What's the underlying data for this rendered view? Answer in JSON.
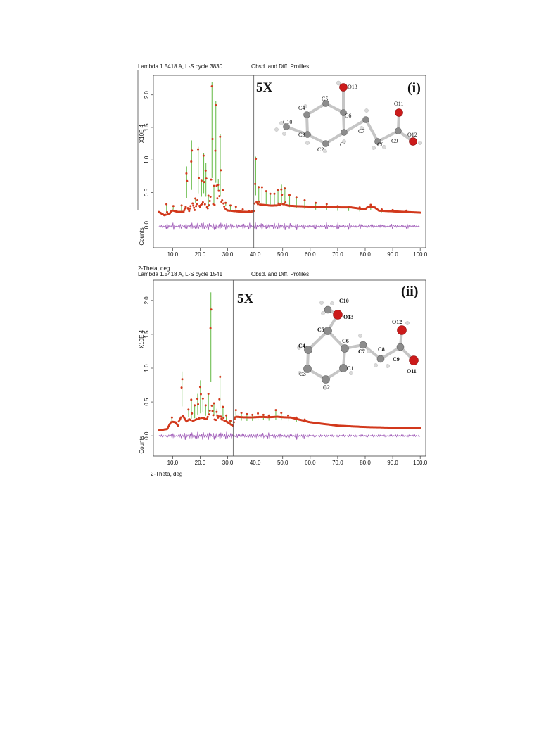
{
  "panels": [
    {
      "header_left": "Lambda 1.5418 A, L-S cycle 3830",
      "header_center": "Obsd. and Diff. Profiles",
      "panel_label": "(i)",
      "zoom_label": "5X",
      "ylabel_scale": "X10E 4",
      "ylabel": "Counts",
      "xlabel": "2-Theta, deg",
      "atom_labels": {
        "O13": "O13",
        "C5": "C5",
        "C4": "C4",
        "C6": "C6",
        "C10": "C10",
        "C3": "C3",
        "C2": "C2",
        "C1": "C1",
        "C7": "C7",
        "C8": "C8",
        "C9": "C9",
        "O11": "O11",
        "O12": "O12"
      }
    },
    {
      "header_left": "Lambda 1.5418 A, L-S cycle 1541",
      "header_center": "Obsd. and Diff. Profiles",
      "panel_label": "(ii)",
      "zoom_label": "5X",
      "ylabel_scale": "X10E 4",
      "ylabel": "Counts",
      "xlabel": "2-Theta, deg",
      "atom_labels": {
        "C10": "C10",
        "O13": "O13",
        "C5": "C5",
        "C4": "C4",
        "C6": "C6",
        "C7": "C7",
        "C8": "C8",
        "C9": "C9",
        "O12": "O12",
        "O11": "O11",
        "C1": "C1",
        "C2": "C2",
        "C3": "C3"
      }
    }
  ],
  "colors": {
    "observed": "#d2391c",
    "calculated": "#6fbf52",
    "difference": "#a05cb8",
    "oxygen": "#cc1b1b",
    "carbon": "#8a8a8a",
    "hydrogen": "#d8d8d8",
    "bond": "#c9c9c9"
  },
  "chart_data": [
    {
      "type": "line",
      "title": "",
      "xlabel": "2-Theta, deg",
      "ylabel": "Counts",
      "y_scale_label": "X10E 4",
      "xlim": [
        3,
        102
      ],
      "ylim": [
        -0.35,
        2.3
      ],
      "x_ticks": [
        "10.0",
        "20.0",
        "30.0",
        "40.0",
        "50.0",
        "60.0",
        "70.0",
        "80.0",
        "90.0",
        "100.0"
      ],
      "y_ticks": [
        "0.0",
        "0.5",
        "1.0",
        "1.5",
        "2.0"
      ],
      "magnification_start_2theta": 39.5,
      "magnification_factor": "5X",
      "series": [
        {
          "name": "Obsd.",
          "x": [
            5,
            7,
            9,
            10,
            12,
            14,
            15,
            16,
            17,
            18,
            19,
            20,
            21,
            22,
            23,
            24,
            25,
            26,
            27,
            28,
            29,
            30,
            32,
            34,
            36,
            38,
            39.5,
            40,
            41,
            42,
            44,
            46,
            48,
            50,
            52,
            55,
            60,
            65,
            70,
            75,
            80,
            82,
            85,
            90,
            95,
            100
          ],
          "y": [
            0.2,
            0.15,
            0.18,
            0.35,
            0.2,
            0.22,
            0.9,
            0.3,
            1.3,
            0.4,
            1.2,
            0.7,
            1.1,
            0.95,
            0.45,
            2.2,
            0.6,
            1.9,
            0.7,
            1.4,
            0.55,
            0.35,
            0.3,
            0.25,
            0.22,
            0.2,
            0.3,
            1.05,
            0.6,
            0.55,
            0.5,
            0.45,
            0.48,
            0.62,
            0.45,
            0.4,
            0.35,
            0.3,
            0.28,
            0.27,
            0.24,
            0.32,
            0.22,
            0.21,
            0.2,
            0.19
          ]
        },
        {
          "name": "Diff.",
          "x": [
            5,
            10,
            15,
            20,
            25,
            30,
            35,
            40,
            45,
            50,
            60,
            70,
            80,
            90,
            100
          ],
          "y": [
            -0.02,
            -0.02,
            -0.02,
            -0.02,
            -0.02,
            -0.02,
            -0.02,
            -0.02,
            -0.02,
            -0.02,
            -0.02,
            -0.02,
            -0.02,
            -0.02,
            -0.02
          ]
        }
      ],
      "peaks": [
        {
          "x": 7.8,
          "y": 0.33
        },
        {
          "x": 10.2,
          "y": 0.3
        },
        {
          "x": 13.2,
          "y": 0.31
        },
        {
          "x": 15.1,
          "y": 0.9
        },
        {
          "x": 16.9,
          "y": 1.3
        },
        {
          "x": 18.3,
          "y": 0.42
        },
        {
          "x": 19.3,
          "y": 1.2
        },
        {
          "x": 20.5,
          "y": 0.68
        },
        {
          "x": 21.3,
          "y": 1.1
        },
        {
          "x": 22.1,
          "y": 0.95
        },
        {
          "x": 23.0,
          "y": 0.45
        },
        {
          "x": 24.3,
          "y": 2.2
        },
        {
          "x": 25.0,
          "y": 0.6
        },
        {
          "x": 25.7,
          "y": 1.9
        },
        {
          "x": 26.6,
          "y": 0.7
        },
        {
          "x": 27.3,
          "y": 1.4
        },
        {
          "x": 28.3,
          "y": 0.55
        },
        {
          "x": 29.3,
          "y": 0.35
        },
        {
          "x": 31.0,
          "y": 0.3
        },
        {
          "x": 33.0,
          "y": 0.28
        },
        {
          "x": 35.5,
          "y": 0.24
        },
        {
          "x": 37.8,
          "y": 0.22
        },
        {
          "x": 40.2,
          "y": 1.05
        },
        {
          "x": 41.3,
          "y": 0.6
        },
        {
          "x": 42.5,
          "y": 0.58
        },
        {
          "x": 44.0,
          "y": 0.52
        },
        {
          "x": 45.5,
          "y": 0.48
        },
        {
          "x": 47.0,
          "y": 0.48
        },
        {
          "x": 48.3,
          "y": 0.55
        },
        {
          "x": 49.6,
          "y": 0.62
        },
        {
          "x": 50.8,
          "y": 0.58
        },
        {
          "x": 52.5,
          "y": 0.46
        },
        {
          "x": 55.0,
          "y": 0.42
        },
        {
          "x": 58.0,
          "y": 0.38
        },
        {
          "x": 62.0,
          "y": 0.34
        },
        {
          "x": 66.0,
          "y": 0.32
        },
        {
          "x": 70.0,
          "y": 0.29
        },
        {
          "x": 74.0,
          "y": 0.28
        },
        {
          "x": 78.0,
          "y": 0.27
        },
        {
          "x": 82.0,
          "y": 0.31
        },
        {
          "x": 86.0,
          "y": 0.24
        },
        {
          "x": 90.0,
          "y": 0.23
        },
        {
          "x": 95.0,
          "y": 0.22
        }
      ]
    },
    {
      "type": "line",
      "title": "",
      "xlabel": "2-Theta, deg",
      "ylabel": "Counts",
      "y_scale_label": "X10E 4",
      "xlim": [
        3,
        102
      ],
      "ylim": [
        -0.3,
        2.3
      ],
      "x_ticks": [
        "10.0",
        "20.0",
        "30.0",
        "40.0",
        "50.0",
        "60.0",
        "70.0",
        "80.0",
        "90.0",
        "100.0"
      ],
      "y_ticks": [
        "0.0",
        "0.5",
        "1.0",
        "1.5",
        "2.0"
      ],
      "magnification_start_2theta": 32.0,
      "magnification_factor": "5X",
      "series": [
        {
          "name": "Obsd.",
          "x": [
            5,
            8,
            10,
            12,
            13.5,
            15,
            16,
            17,
            18,
            19,
            20,
            21,
            22,
            23,
            24,
            25,
            26,
            27,
            28,
            29,
            30,
            31,
            32,
            33,
            35,
            38,
            40,
            42,
            45,
            48,
            50,
            55,
            60,
            70,
            80,
            90,
            100
          ],
          "y": [
            0.08,
            0.1,
            0.25,
            0.15,
            0.95,
            0.28,
            0.5,
            0.35,
            0.4,
            0.55,
            0.6,
            0.65,
            0.5,
            0.6,
            2.1,
            0.5,
            0.4,
            0.9,
            0.45,
            0.35,
            0.2,
            0.17,
            0.15,
            0.35,
            0.3,
            0.28,
            0.3,
            0.33,
            0.3,
            0.35,
            0.3,
            0.25,
            0.2,
            0.15,
            0.13,
            0.12,
            0.12
          ]
        },
        {
          "name": "Diff.",
          "x": [
            5,
            10,
            20,
            30,
            40,
            50,
            60,
            70,
            80,
            90,
            100
          ],
          "y": [
            0.0,
            0.0,
            0.0,
            0.0,
            0.0,
            0.0,
            0.0,
            0.0,
            0.0,
            0.0,
            0.0
          ]
        }
      ],
      "peaks": [
        {
          "x": 9.7,
          "y": 0.28
        },
        {
          "x": 13.4,
          "y": 0.95
        },
        {
          "x": 14.6,
          "y": 0.28
        },
        {
          "x": 15.8,
          "y": 0.4
        },
        {
          "x": 16.8,
          "y": 0.55
        },
        {
          "x": 18.0,
          "y": 0.45
        },
        {
          "x": 19.1,
          "y": 0.62
        },
        {
          "x": 20.1,
          "y": 0.82
        },
        {
          "x": 21.0,
          "y": 0.55
        },
        {
          "x": 22.0,
          "y": 0.45
        },
        {
          "x": 23.0,
          "y": 0.62
        },
        {
          "x": 23.9,
          "y": 2.12
        },
        {
          "x": 25.0,
          "y": 0.48
        },
        {
          "x": 26.1,
          "y": 0.4
        },
        {
          "x": 27.2,
          "y": 0.9
        },
        {
          "x": 28.3,
          "y": 0.44
        },
        {
          "x": 29.5,
          "y": 0.3
        },
        {
          "x": 31.0,
          "y": 0.22
        },
        {
          "x": 33.0,
          "y": 0.38
        },
        {
          "x": 35.0,
          "y": 0.34
        },
        {
          "x": 37.0,
          "y": 0.32
        },
        {
          "x": 39.0,
          "y": 0.31
        },
        {
          "x": 41.0,
          "y": 0.33
        },
        {
          "x": 43.0,
          "y": 0.31
        },
        {
          "x": 45.0,
          "y": 0.3
        },
        {
          "x": 47.5,
          "y": 0.38
        },
        {
          "x": 49.5,
          "y": 0.34
        },
        {
          "x": 52.0,
          "y": 0.3
        },
        {
          "x": 55.0,
          "y": 0.27
        },
        {
          "x": 58.0,
          "y": 0.24
        }
      ]
    }
  ]
}
